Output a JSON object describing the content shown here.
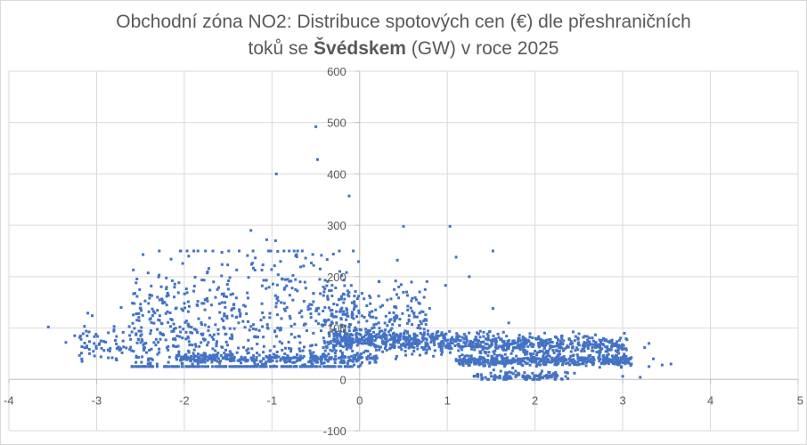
{
  "chart_data": {
    "type": "scatter",
    "title": {
      "line1": "Obchodní zóna NO2: Distribuce spotových cen (€) dle přeshraničních",
      "line2_pre": "toků se ",
      "line2_bold": "Švédskem",
      "line2_post": " (GW) v roce 2025"
    },
    "xlabel": "",
    "ylabel": "",
    "xlim": [
      -4,
      5
    ],
    "ylim": [
      -100,
      600
    ],
    "x_ticks": [
      "-4",
      "-3",
      "-2",
      "-1",
      "0",
      "1",
      "2",
      "3",
      "4",
      "5"
    ],
    "y_ticks": [
      "-100",
      "0",
      "100",
      "200",
      "300",
      "400",
      "500",
      "600"
    ],
    "grid": true,
    "marker_color": "#4472c4",
    "grid_color": "#d9d9d9",
    "series": [
      {
        "name": "NO2",
        "points": [
          [
            -0.5,
            492
          ],
          [
            -0.48,
            428
          ],
          [
            -0.95,
            400
          ],
          [
            -0.12,
            357
          ],
          [
            0.5,
            298
          ],
          [
            1.03,
            298
          ],
          [
            1.52,
            250
          ],
          [
            -1.24,
            290
          ],
          [
            -0.96,
            270
          ],
          [
            -1.06,
            272
          ],
          [
            1.1,
            238
          ],
          [
            0.43,
            232
          ],
          [
            -2.47,
            243
          ],
          [
            -1.95,
            240
          ],
          [
            -0.72,
            243
          ],
          [
            -0.3,
            244
          ],
          [
            1.25,
            200
          ],
          [
            0.98,
            183
          ],
          [
            -0.88,
            195
          ],
          [
            -0.45,
            215
          ],
          [
            -0.15,
            208
          ],
          [
            1.52,
            138
          ],
          [
            1.7,
            110
          ],
          [
            -3.55,
            102
          ],
          [
            -3.35,
            72
          ],
          [
            -3.25,
            85
          ],
          [
            -3.1,
            129
          ],
          [
            -3.05,
            124
          ],
          [
            -2.95,
            75
          ],
          [
            -2.85,
            55
          ],
          [
            -2.8,
            103
          ],
          [
            -2.72,
            140
          ],
          [
            -2.2,
            162
          ],
          [
            -2.55,
            188
          ],
          [
            3.3,
            70
          ],
          [
            3.25,
            62
          ],
          [
            3.35,
            40
          ],
          [
            3.45,
            28
          ],
          [
            3.55,
            30
          ],
          [
            3.3,
            25
          ],
          [
            3.1,
            30
          ],
          [
            1.9,
            3
          ],
          [
            2.05,
            1
          ],
          [
            2.2,
            8
          ],
          [
            2.45,
            12
          ],
          [
            3.0,
            6
          ],
          [
            3.2,
            4
          ],
          [
            1.55,
            5
          ],
          [
            1.35,
            8
          ],
          [
            2.0,
            55
          ]
        ]
      }
    ]
  }
}
